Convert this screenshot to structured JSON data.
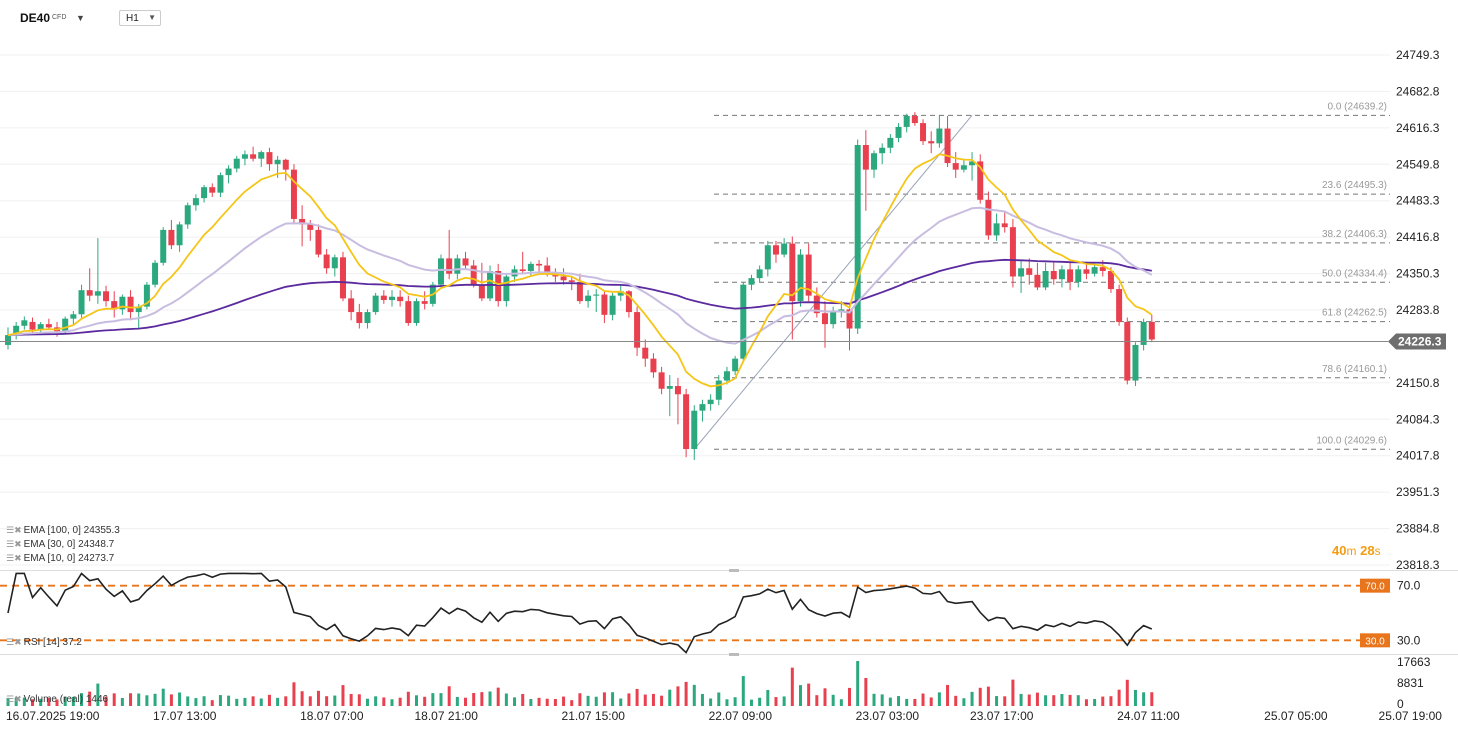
{
  "header": {
    "symbol": "DE40",
    "instrument_type": "CFD",
    "timeframe": "H1"
  },
  "chart_data": [
    {
      "type": "candlestick",
      "timeframe": "H1",
      "ylim": [
        23818.3,
        24749.3
      ],
      "y_ticks": [
        24749.3,
        24682.8,
        24616.3,
        24549.8,
        24483.3,
        24416.8,
        24350.3,
        24283.8,
        24226.3,
        24150.8,
        24084.3,
        24017.8,
        23951.3,
        23884.8,
        23818.3
      ],
      "x_tick_labels": [
        {
          "label": "16.07.2025  19:00",
          "bar": 0
        },
        {
          "label": "17.07  13:00",
          "bar": 18
        },
        {
          "label": "18.07  07:00",
          "bar": 36
        },
        {
          "label": "18.07  21:00",
          "bar": 50
        },
        {
          "label": "21.07  15:00",
          "bar": 68
        },
        {
          "label": "22.07  09:00",
          "bar": 86
        },
        {
          "label": "23.07  03:00",
          "bar": 104
        },
        {
          "label": "23.07  17:00",
          "bar": 118
        },
        {
          "label": "24.07  11:00",
          "bar": 136
        },
        {
          "label": "25.07  05:00",
          "bar": 154
        },
        {
          "label": "25.07  19:00",
          "bar": 168
        }
      ],
      "current_price": 24226.3,
      "current_price_label": "24226.3",
      "candles": [
        [
          24220,
          24252,
          24212,
          24238
        ],
        [
          24238,
          24262,
          24230,
          24255
        ],
        [
          24255,
          24272,
          24248,
          24265
        ],
        [
          24262,
          24270,
          24240,
          24248
        ],
        [
          24248,
          24262,
          24238,
          24258
        ],
        [
          24258,
          24268,
          24248,
          24252
        ],
        [
          24252,
          24262,
          24235,
          24245
        ],
        [
          24245,
          24272,
          24240,
          24268
        ],
        [
          24268,
          24282,
          24258,
          24276
        ],
        [
          24276,
          24330,
          24270,
          24320
        ],
        [
          24320,
          24360,
          24300,
          24310
        ],
        [
          24310,
          24415,
          24295,
          24318
        ],
        [
          24318,
          24328,
          24290,
          24300
        ],
        [
          24300,
          24318,
          24270,
          24285
        ],
        [
          24285,
          24312,
          24275,
          24308
        ],
        [
          24308,
          24320,
          24265,
          24280
        ],
        [
          24280,
          24295,
          24250,
          24290
        ],
        [
          24290,
          24335,
          24285,
          24330
        ],
        [
          24330,
          24375,
          24325,
          24370
        ],
        [
          24370,
          24435,
          24365,
          24430
        ],
        [
          24430,
          24448,
          24395,
          24402
        ],
        [
          24402,
          24445,
          24390,
          24440
        ],
        [
          24440,
          24480,
          24432,
          24475
        ],
        [
          24475,
          24495,
          24465,
          24488
        ],
        [
          24488,
          24512,
          24480,
          24508
        ],
        [
          24508,
          24515,
          24490,
          24498
        ],
        [
          24498,
          24535,
          24490,
          24530
        ],
        [
          24530,
          24548,
          24515,
          24542
        ],
        [
          24542,
          24565,
          24535,
          24560
        ],
        [
          24560,
          24575,
          24548,
          24568
        ],
        [
          24568,
          24582,
          24555,
          24560
        ],
        [
          24560,
          24575,
          24545,
          24572
        ],
        [
          24572,
          24580,
          24538,
          24550
        ],
        [
          24550,
          24565,
          24525,
          24558
        ],
        [
          24558,
          24560,
          24520,
          24540
        ],
        [
          24540,
          24550,
          24440,
          24450
        ],
        [
          24450,
          24475,
          24400,
          24440
        ],
        [
          24440,
          24448,
          24410,
          24430
        ],
        [
          24430,
          24440,
          24380,
          24385
        ],
        [
          24385,
          24395,
          24350,
          24360
        ],
        [
          24360,
          24385,
          24345,
          24380
        ],
        [
          24380,
          24390,
          24300,
          24305
        ],
        [
          24305,
          24320,
          24265,
          24280
        ],
        [
          24280,
          24295,
          24250,
          24260
        ],
        [
          24260,
          24285,
          24250,
          24280
        ],
        [
          24280,
          24315,
          24275,
          24310
        ],
        [
          24310,
          24320,
          24295,
          24302
        ],
        [
          24302,
          24320,
          24290,
          24308
        ],
        [
          24308,
          24320,
          24290,
          24300
        ],
        [
          24300,
          24310,
          24255,
          24260
        ],
        [
          24260,
          24305,
          24255,
          24300
        ],
        [
          24300,
          24318,
          24285,
          24295
        ],
        [
          24295,
          24335,
          24290,
          24330
        ],
        [
          24330,
          24385,
          24325,
          24378
        ],
        [
          24378,
          24430,
          24340,
          24350
        ],
        [
          24350,
          24385,
          24340,
          24378
        ],
        [
          24378,
          24390,
          24358,
          24365
        ],
        [
          24365,
          24375,
          24325,
          24330
        ],
        [
          24330,
          24370,
          24300,
          24305
        ],
        [
          24305,
          24365,
          24300,
          24355
        ],
        [
          24355,
          24368,
          24290,
          24300
        ],
        [
          24300,
          24350,
          24290,
          24345
        ],
        [
          24345,
          24365,
          24335,
          24358
        ],
        [
          24358,
          24390,
          24350,
          24355
        ],
        [
          24355,
          24372,
          24345,
          24368
        ],
        [
          24368,
          24375,
          24350,
          24365
        ],
        [
          24365,
          24380,
          24345,
          24352
        ],
        [
          24352,
          24360,
          24335,
          24345
        ],
        [
          24345,
          24360,
          24330,
          24338
        ],
        [
          24338,
          24345,
          24320,
          24335
        ],
        [
          24335,
          24350,
          24295,
          24300
        ],
        [
          24300,
          24320,
          24288,
          24310
        ],
        [
          24310,
          24322,
          24280,
          24312
        ],
        [
          24312,
          24318,
          24260,
          24275
        ],
        [
          24275,
          24315,
          24265,
          24310
        ],
        [
          24310,
          24330,
          24300,
          24318
        ],
        [
          24318,
          24320,
          24270,
          24280
        ],
        [
          24280,
          24290,
          24200,
          24215
        ],
        [
          24215,
          24230,
          24180,
          24195
        ],
        [
          24195,
          24205,
          24160,
          24170
        ],
        [
          24170,
          24180,
          24130,
          24140
        ],
        [
          24140,
          24165,
          24090,
          24145
        ],
        [
          24145,
          24160,
          24075,
          24130
        ],
        [
          24130,
          24140,
          24015,
          24030
        ],
        [
          24030,
          24110,
          24010,
          24100
        ],
        [
          24100,
          24120,
          24080,
          24112
        ],
        [
          24112,
          24130,
          24100,
          24120
        ],
        [
          24120,
          24165,
          24110,
          24155
        ],
        [
          24155,
          24180,
          24148,
          24172
        ],
        [
          24172,
          24200,
          24165,
          24195
        ],
        [
          24195,
          24335,
          24190,
          24330
        ],
        [
          24330,
          24348,
          24320,
          24342
        ],
        [
          24342,
          24365,
          24335,
          24358
        ],
        [
          24358,
          24410,
          24345,
          24402
        ],
        [
          24402,
          24410,
          24370,
          24385
        ],
        [
          24385,
          24415,
          24380,
          24405
        ],
        [
          24405,
          24418,
          24230,
          24300
        ],
        [
          24300,
          24395,
          24290,
          24385
        ],
        [
          24385,
          24405,
          24300,
          24310
        ],
        [
          24310,
          24325,
          24270,
          24278
        ],
        [
          24278,
          24300,
          24215,
          24258
        ],
        [
          24258,
          24290,
          24250,
          24280
        ],
        [
          24280,
          24300,
          24270,
          24285
        ],
        [
          24285,
          24295,
          24210,
          24250
        ],
        [
          24250,
          24595,
          24240,
          24585
        ],
        [
          24585,
          24612,
          24465,
          24540
        ],
        [
          24540,
          24575,
          24525,
          24570
        ],
        [
          24570,
          24588,
          24550,
          24580
        ],
        [
          24580,
          24605,
          24570,
          24598
        ],
        [
          24598,
          24625,
          24590,
          24618
        ],
        [
          24618,
          24642,
          24608,
          24638
        ],
        [
          24638,
          24645,
          24620,
          24625
        ],
        [
          24625,
          24632,
          24585,
          24592
        ],
        [
          24592,
          24610,
          24570,
          24588
        ],
        [
          24588,
          24640,
          24580,
          24615
        ],
        [
          24615,
          24638,
          24545,
          24552
        ],
        [
          24552,
          24572,
          24525,
          24540
        ],
        [
          24540,
          24560,
          24535,
          24548
        ],
        [
          24548,
          24572,
          24520,
          24555
        ],
        [
          24555,
          24568,
          24478,
          24485
        ],
        [
          24485,
          24500,
          24412,
          24420
        ],
        [
          24420,
          24460,
          24410,
          24442
        ],
        [
          24442,
          24465,
          24425,
          24435
        ],
        [
          24435,
          24450,
          24325,
          24345
        ],
        [
          24345,
          24375,
          24315,
          24360
        ],
        [
          24360,
          24378,
          24330,
          24348
        ],
        [
          24348,
          24370,
          24320,
          24325
        ],
        [
          24325,
          24370,
          24320,
          24355
        ],
        [
          24355,
          24372,
          24330,
          24340
        ],
        [
          24340,
          24365,
          24325,
          24358
        ],
        [
          24358,
          24370,
          24320,
          24335
        ],
        [
          24335,
          24365,
          24325,
          24358
        ],
        [
          24358,
          24372,
          24340,
          24350
        ],
        [
          24350,
          24370,
          24345,
          24362
        ],
        [
          24362,
          24375,
          24345,
          24355
        ],
        [
          24355,
          24362,
          24315,
          24322
        ],
        [
          24322,
          24330,
          24255,
          24262
        ],
        [
          24262,
          24270,
          24148,
          24155
        ],
        [
          24155,
          24225,
          24145,
          24220
        ],
        [
          24220,
          24268,
          24210,
          24262
        ],
        [
          24262,
          24275,
          24225,
          24230
        ]
      ],
      "series": [
        {
          "name": "EMA [100, 0]",
          "legend": "EMA [100,  0]  24355.3",
          "color": "#5b2a9e",
          "last_value": 24355.3
        },
        {
          "name": "EMA [30, 0]",
          "legend": "EMA [30,  0]  24348.7",
          "color": "#c8bde0",
          "last_value": 24348.7
        },
        {
          "name": "EMA [10, 0]",
          "legend": "EMA [10,  0]  24273.7",
          "color": "#f5c518",
          "last_value": 24273.7
        }
      ],
      "fibonacci_levels": [
        {
          "ratio": 0.0,
          "price": 24639.2,
          "label": "0.0 (24639.2)"
        },
        {
          "ratio": 23.6,
          "price": 24495.3,
          "label": "23.6 (24495.3)"
        },
        {
          "ratio": 38.2,
          "price": 24406.3,
          "label": "38.2 (24406.3)"
        },
        {
          "ratio": 50.0,
          "price": 24334.4,
          "label": "50.0 (24334.4)"
        },
        {
          "ratio": 61.8,
          "price": 24262.5,
          "label": "61.8 (24262.5)"
        },
        {
          "ratio": 78.6,
          "price": 24160.1,
          "label": "78.6 (24160.1)"
        },
        {
          "ratio": 100.0,
          "price": 24029.6,
          "label": "100.0 (24029.6)"
        }
      ],
      "bar_timer": {
        "minutes": "40",
        "m": "m",
        "seconds": "28",
        "s": "s"
      }
    },
    {
      "type": "line",
      "name": "RSI [14]",
      "legend": "RSI [14]  37.2",
      "last_value": 37.2,
      "ylim": [
        20,
        80
      ],
      "levels": [
        {
          "value": 70,
          "label": "70.0"
        },
        {
          "value": 30,
          "label": "30.0"
        }
      ],
      "color": "#222222",
      "level_color": "#e8741c"
    },
    {
      "type": "bar",
      "name": "Volume (real)",
      "legend": "Volume  (real)  1446",
      "last_value": 1446,
      "y_ticks": [
        "17663",
        "8831",
        "0"
      ],
      "ylim": [
        0,
        17663
      ],
      "up_color": "#2ca87f",
      "down_color": "#e8404f"
    }
  ]
}
